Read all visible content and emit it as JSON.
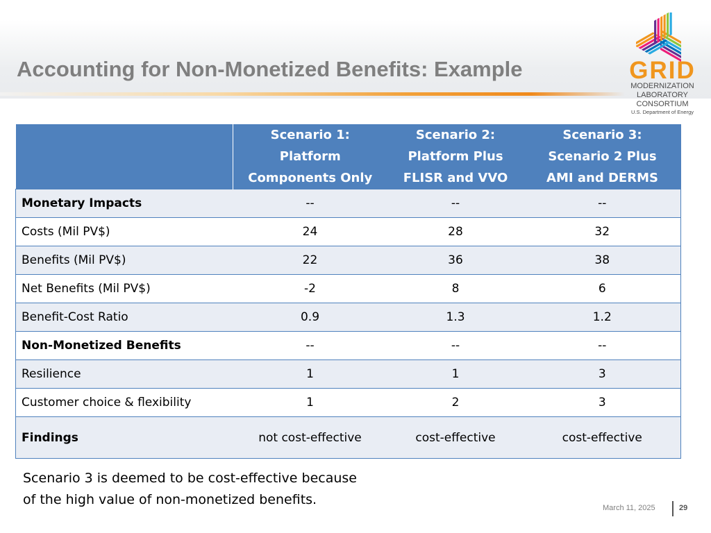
{
  "slide": {
    "title": "Accounting for Non-Monetized Benefits: Example",
    "date": "March 11, 2025",
    "page_number": "29",
    "footnote_lines": [
      "Scenario 3 is deemed to be cost-effective because",
      "of the high value of non-monetized benefits."
    ]
  },
  "logo": {
    "wordmark": "GRID",
    "subtitle_lines": [
      "MODERNIZATION",
      "LABORATORY",
      "CONSORTIUM"
    ],
    "department": "U.S. Department of Energy",
    "colors": [
      "#f0961e",
      "#8cc63f",
      "#29abe2",
      "#0071bc",
      "#662d91",
      "#ed1e79",
      "#f7931e"
    ]
  },
  "table": {
    "header": {
      "corner": "",
      "columns": [
        [
          "Scenario 1:",
          "Platform",
          "Components Only"
        ],
        [
          "Scenario 2:",
          "Platform Plus",
          "FLISR and VVO"
        ],
        [
          "Scenario 3:",
          "Scenario 2 Plus",
          "AMI and DERMS"
        ]
      ]
    },
    "rows": [
      {
        "label": "Monetary Impacts",
        "values": [
          "--",
          "--",
          "--"
        ]
      },
      {
        "label": "Costs (Mil PV$)",
        "values": [
          "24",
          "28",
          "32"
        ]
      },
      {
        "label": "Benefits (Mil PV$)",
        "values": [
          "22",
          "36",
          "38"
        ]
      },
      {
        "label": "Net Benefits (Mil PV$)",
        "values": [
          "-2",
          "8",
          "6"
        ]
      },
      {
        "label": "Benefit-Cost Ratio",
        "values": [
          "0.9",
          "1.3",
          "1.2"
        ]
      },
      {
        "label": "Non-Monetized Benefits",
        "values": [
          "--",
          "--",
          "--"
        ]
      },
      {
        "label": "Resilience",
        "values": [
          "1",
          "1",
          "3"
        ]
      },
      {
        "label": "Customer choice & flexibility",
        "values": [
          "1",
          "2",
          "3"
        ]
      },
      {
        "label": "Findings",
        "values": [
          "not cost-effective",
          "cost-effective",
          "cost-effective"
        ]
      }
    ]
  },
  "colors": {
    "header_fill": "#4f81bd",
    "row_shade": "#e9edf4",
    "title_gray": "#7f7f7f",
    "accent_orange": "#f0961e"
  }
}
